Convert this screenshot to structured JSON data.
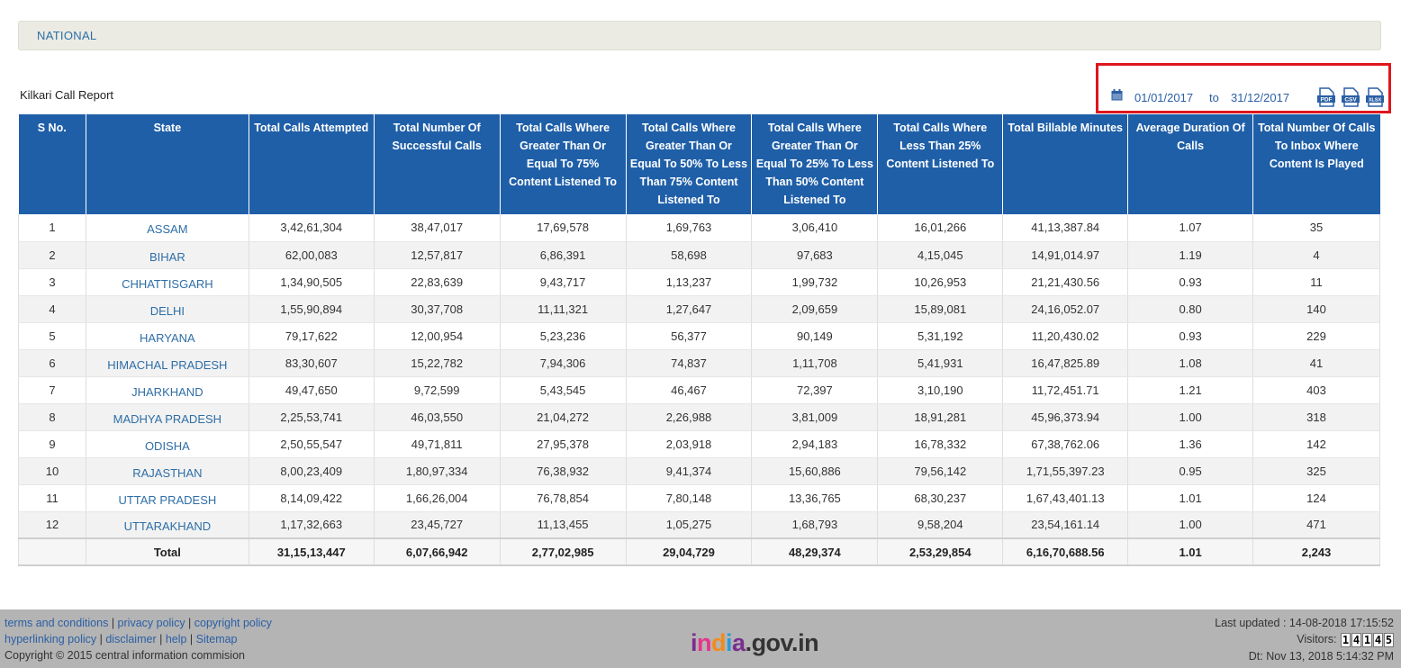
{
  "breadcrumb": {
    "label": "NATIONAL"
  },
  "report": {
    "title": "Kilkari Call Report"
  },
  "toolbar": {
    "calendar_icon": "calendar-icon",
    "date_from": "01/01/2017",
    "to_label": "to",
    "date_to": "31/12/2017",
    "exports": [
      {
        "label": "PDF",
        "icon": "pdf-file-icon"
      },
      {
        "label": "CSV",
        "icon": "csv-file-icon"
      },
      {
        "label": "XLSX",
        "icon": "xlsx-file-icon"
      }
    ],
    "highlight_color": "#e0161d"
  },
  "table": {
    "header_color": "#1f5fa8",
    "columns": [
      "S No.",
      "State",
      "Total Calls Attempted",
      "Total Number Of Successful Calls",
      "Total Calls Where Greater Than Or Equal To 75% Content Listened To",
      "Total Calls Where Greater Than Or Equal To 50% To Less Than 75% Content Listened To",
      "Total Calls Where Greater Than Or Equal To 25% To Less Than 50% Content Listened To",
      "Total Calls Where Less Than 25% Content Listened To",
      "Total Billable Minutes",
      "Average Duration Of Calls",
      "Total Number Of Calls To Inbox Where Content Is Played"
    ],
    "rows": [
      [
        "1",
        "ASSAM",
        "3,42,61,304",
        "38,47,017",
        "17,69,578",
        "1,69,763",
        "3,06,410",
        "16,01,266",
        "41,13,387.84",
        "1.07",
        "35"
      ],
      [
        "2",
        "BIHAR",
        "62,00,083",
        "12,57,817",
        "6,86,391",
        "58,698",
        "97,683",
        "4,15,045",
        "14,91,014.97",
        "1.19",
        "4"
      ],
      [
        "3",
        "CHHATTISGARH",
        "1,34,90,505",
        "22,83,639",
        "9,43,717",
        "1,13,237",
        "1,99,732",
        "10,26,953",
        "21,21,430.56",
        "0.93",
        "11"
      ],
      [
        "4",
        "DELHI",
        "1,55,90,894",
        "30,37,708",
        "11,11,321",
        "1,27,647",
        "2,09,659",
        "15,89,081",
        "24,16,052.07",
        "0.80",
        "140"
      ],
      [
        "5",
        "HARYANA",
        "79,17,622",
        "12,00,954",
        "5,23,236",
        "56,377",
        "90,149",
        "5,31,192",
        "11,20,430.02",
        "0.93",
        "229"
      ],
      [
        "6",
        "HIMACHAL PRADESH",
        "83,30,607",
        "15,22,782",
        "7,94,306",
        "74,837",
        "1,11,708",
        "5,41,931",
        "16,47,825.89",
        "1.08",
        "41"
      ],
      [
        "7",
        "JHARKHAND",
        "49,47,650",
        "9,72,599",
        "5,43,545",
        "46,467",
        "72,397",
        "3,10,190",
        "11,72,451.71",
        "1.21",
        "403"
      ],
      [
        "8",
        "MADHYA PRADESH",
        "2,25,53,741",
        "46,03,550",
        "21,04,272",
        "2,26,988",
        "3,81,009",
        "18,91,281",
        "45,96,373.94",
        "1.00",
        "318"
      ],
      [
        "9",
        "ODISHA",
        "2,50,55,547",
        "49,71,811",
        "27,95,378",
        "2,03,918",
        "2,94,183",
        "16,78,332",
        "67,38,762.06",
        "1.36",
        "142"
      ],
      [
        "10",
        "RAJASTHAN",
        "8,00,23,409",
        "1,80,97,334",
        "76,38,932",
        "9,41,374",
        "15,60,886",
        "79,56,142",
        "1,71,55,397.23",
        "0.95",
        "325"
      ],
      [
        "11",
        "UTTAR PRADESH",
        "8,14,09,422",
        "1,66,26,004",
        "76,78,854",
        "7,80,148",
        "13,36,765",
        "68,30,237",
        "1,67,43,401.13",
        "1.01",
        "124"
      ],
      [
        "12",
        "UTTARAKHAND",
        "1,17,32,663",
        "23,45,727",
        "11,13,455",
        "1,05,275",
        "1,68,793",
        "9,58,204",
        "23,54,161.14",
        "1.00",
        "471"
      ]
    ],
    "total": [
      "",
      "Total",
      "31,15,13,447",
      "6,07,66,942",
      "2,77,02,985",
      "29,04,729",
      "48,29,374",
      "2,53,29,854",
      "6,16,70,688.56",
      "1.01",
      "2,243"
    ]
  },
  "footer": {
    "links": [
      {
        "label": "terms and conditions"
      },
      {
        "label": "privacy policy"
      },
      {
        "label": "copyright policy"
      },
      {
        "label": "hyperlinking policy"
      },
      {
        "label": "disclaimer"
      },
      {
        "label": "help"
      },
      {
        "label": "Sitemap"
      }
    ],
    "copyright": "Copyright © 2015 central information commision",
    "logo_text": "india.gov.in",
    "last_updated": "Last updated : 14-08-2018 17:15:52",
    "visitors_label": "Visitors:",
    "visitors_digits": [
      "1",
      "4",
      "1",
      "4",
      "5"
    ],
    "datetime": "Dt: Nov 13, 2018 5:14:32 PM"
  }
}
